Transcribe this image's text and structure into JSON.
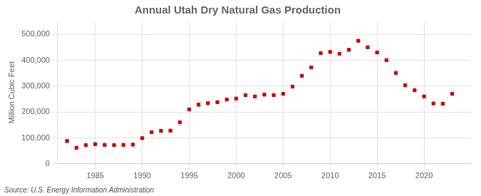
{
  "chart_data": {
    "type": "scatter",
    "title": "Annual Utah Dry Natural Gas Production",
    "ylabel": "Million Cubic Feet",
    "source": "Source: U.S. Energy Information Administration",
    "x": [
      1982,
      1983,
      1984,
      1985,
      1986,
      1987,
      1988,
      1989,
      1990,
      1991,
      1992,
      1993,
      1994,
      1995,
      1996,
      1997,
      1998,
      1999,
      2000,
      2001,
      2002,
      2003,
      2004,
      2005,
      2006,
      2007,
      2008,
      2009,
      2010,
      2011,
      2012,
      2013,
      2014,
      2015,
      2016,
      2017,
      2018,
      2019,
      2020,
      2021,
      2022,
      2023
    ],
    "values": [
      88000,
      62000,
      72000,
      76000,
      73000,
      72000,
      73000,
      74000,
      99000,
      122000,
      127000,
      128000,
      160000,
      210000,
      228000,
      234000,
      238000,
      248000,
      252000,
      265000,
      260000,
      267000,
      265000,
      270000,
      298000,
      340000,
      372000,
      427000,
      432000,
      425000,
      440000,
      475000,
      450000,
      430000,
      400000,
      351000,
      303000,
      284000,
      260000,
      233000,
      232000,
      270000
    ],
    "color": "#cc0000",
    "marker": "square",
    "xlim": [
      1981,
      2025
    ],
    "xticks": [
      1985,
      1990,
      1995,
      2000,
      2005,
      2010,
      2015,
      2020
    ],
    "ylim": [
      0,
      550000
    ],
    "yticks": [
      0,
      {
        "value": 100000,
        "label": "100,000"
      },
      {
        "value": 200000,
        "label": "200,000"
      },
      {
        "value": 300000,
        "label": "300,000"
      },
      {
        "value": 400000,
        "label": "400,000"
      },
      {
        "value": 500000,
        "label": "500,000"
      }
    ],
    "grid": true
  }
}
